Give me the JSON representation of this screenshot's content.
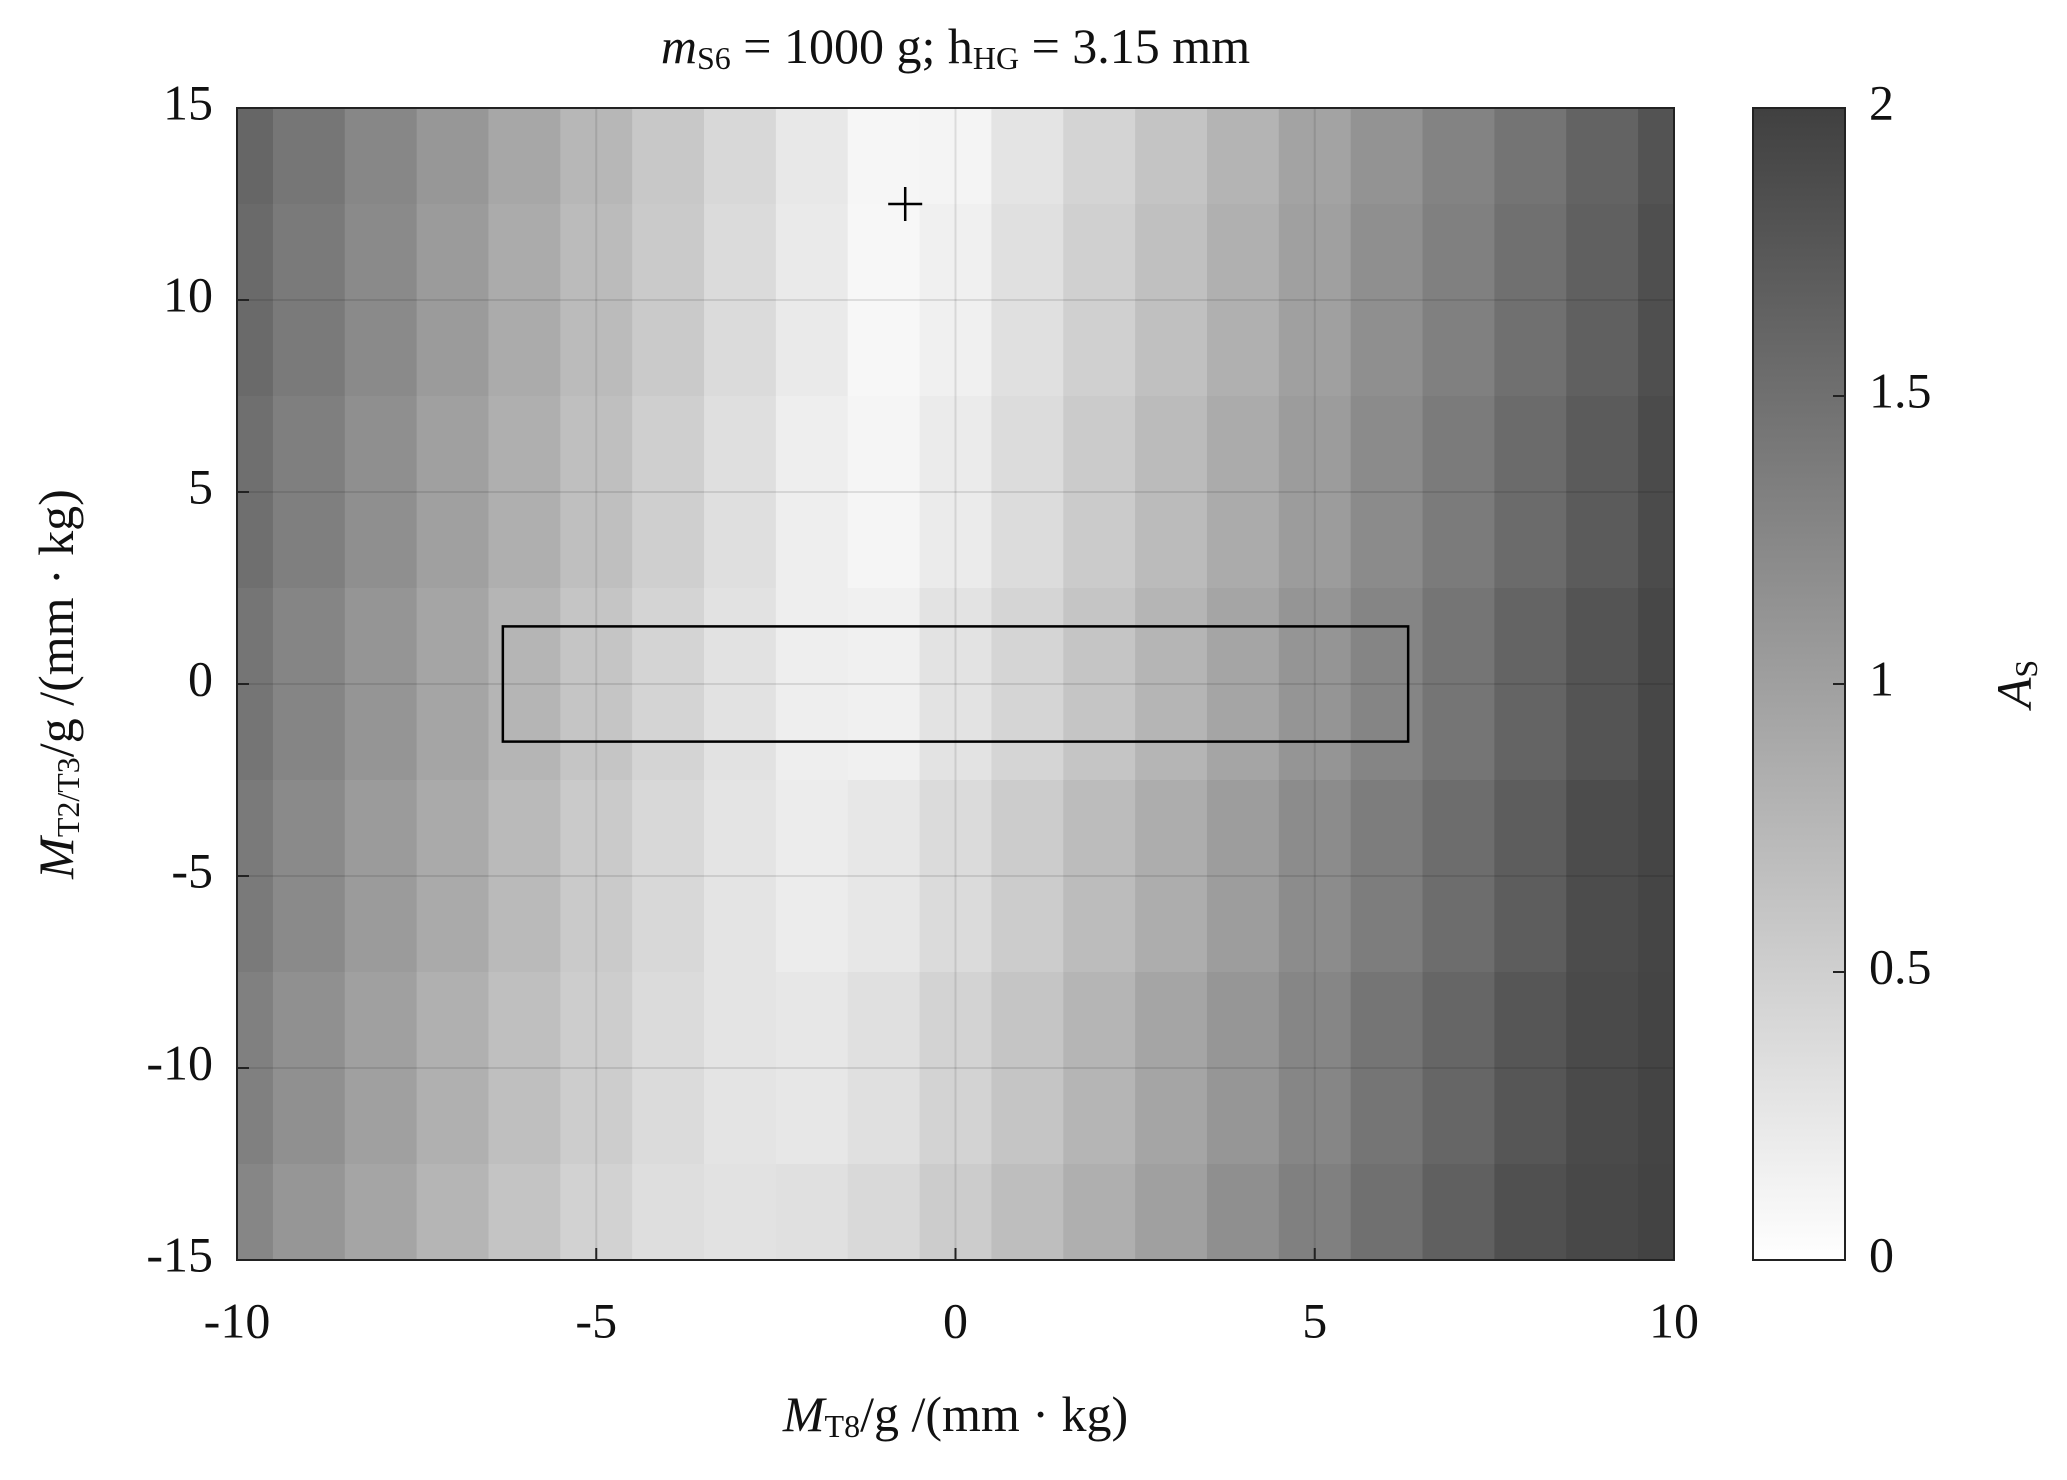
{
  "chart_data": {
    "type": "heatmap",
    "title": [
      "m",
      "S6",
      " = 1000 g; h",
      "HG",
      " = 3.15 mm"
    ],
    "x_label": [
      "M",
      "T8",
      "/g  /(mm · kg)"
    ],
    "y_label": [
      "M",
      "T2/T3",
      "/g  /(mm · kg)"
    ],
    "colorbar_label": [
      "A",
      "S"
    ],
    "x": [
      -10,
      -9,
      -8,
      -7,
      -6,
      -5,
      -4,
      -3,
      -2,
      -1,
      0,
      1,
      2,
      3,
      4,
      5,
      6,
      7,
      8,
      9,
      10
    ],
    "y": [
      15,
      10,
      5,
      0,
      -5,
      -10,
      -15
    ],
    "values": [
      [
        1.6,
        1.43,
        1.26,
        1.09,
        0.92,
        0.75,
        0.58,
        0.41,
        0.24,
        0.09,
        0.12,
        0.28,
        0.45,
        0.62,
        0.79,
        0.96,
        1.13,
        1.3,
        1.46,
        1.63,
        1.8
      ],
      [
        1.56,
        1.39,
        1.22,
        1.05,
        0.88,
        0.71,
        0.55,
        0.38,
        0.22,
        0.08,
        0.16,
        0.32,
        0.49,
        0.66,
        0.83,
        1.0,
        1.17,
        1.33,
        1.5,
        1.67,
        1.84
      ],
      [
        1.51,
        1.34,
        1.17,
        1.0,
        0.84,
        0.67,
        0.5,
        0.34,
        0.18,
        0.1,
        0.21,
        0.37,
        0.54,
        0.71,
        0.88,
        1.04,
        1.21,
        1.38,
        1.55,
        1.72,
        1.89
      ],
      [
        1.45,
        1.28,
        1.11,
        0.94,
        0.78,
        0.61,
        0.45,
        0.3,
        0.18,
        0.16,
        0.29,
        0.44,
        0.61,
        0.77,
        0.94,
        1.11,
        1.28,
        1.45,
        1.62,
        1.79,
        1.93
      ],
      [
        1.39,
        1.22,
        1.05,
        0.89,
        0.72,
        0.56,
        0.41,
        0.28,
        0.2,
        0.25,
        0.38,
        0.53,
        0.7,
        0.86,
        1.03,
        1.2,
        1.36,
        1.53,
        1.7,
        1.87,
        1.95
      ],
      [
        1.33,
        1.16,
        0.99,
        0.83,
        0.67,
        0.52,
        0.38,
        0.28,
        0.25,
        0.32,
        0.46,
        0.61,
        0.77,
        0.94,
        1.1,
        1.27,
        1.44,
        1.6,
        1.77,
        1.9,
        1.96
      ],
      [
        1.27,
        1.1,
        0.94,
        0.78,
        0.62,
        0.47,
        0.35,
        0.3,
        0.32,
        0.4,
        0.53,
        0.68,
        0.84,
        1.0,
        1.17,
        1.33,
        1.5,
        1.66,
        1.83,
        1.92,
        1.97
      ]
    ],
    "xlim": [
      -10,
      10
    ],
    "xticks": [
      -10,
      -5,
      0,
      5,
      10
    ],
    "ylim": [
      -15,
      15
    ],
    "yticks": [
      -15,
      -10,
      -5,
      0,
      5,
      10,
      15
    ],
    "clim": [
      0,
      2
    ],
    "cticks": [
      0,
      0.5,
      1,
      1.5,
      2
    ],
    "colormap": [
      "#ffffff",
      "#404040"
    ],
    "grid": true,
    "marker": {
      "x": -0.7,
      "y": 12.5
    },
    "rectangle": {
      "xlim": [
        -6.3,
        6.3
      ],
      "ylim": [
        -1.5,
        1.5
      ]
    }
  }
}
